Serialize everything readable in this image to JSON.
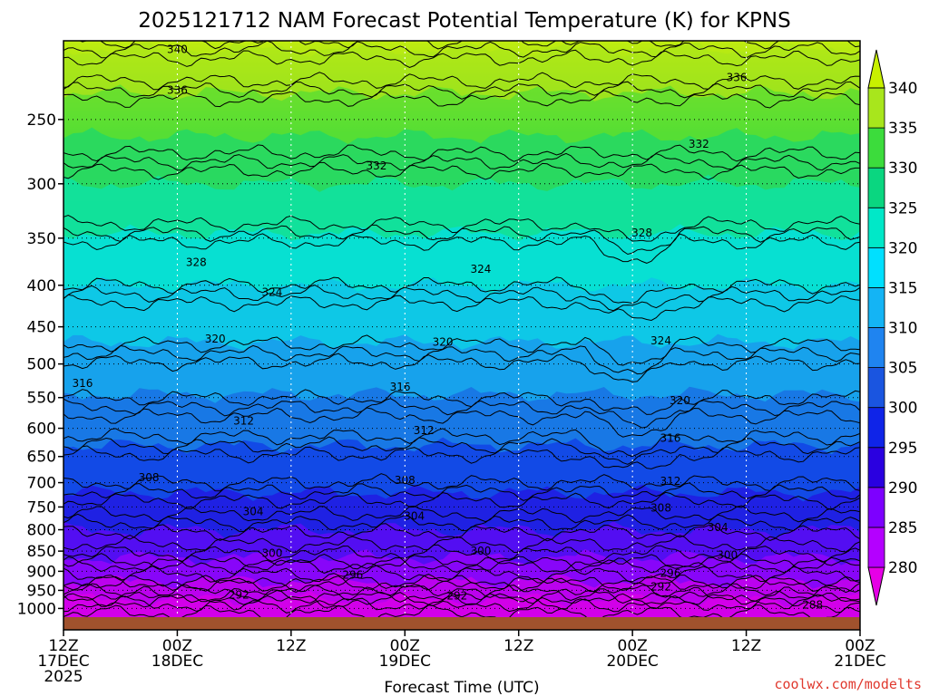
{
  "chart_data": {
    "type": "contour",
    "title": "2025121712 NAM Forecast Potential Temperature (K) for KPNS",
    "xlabel": "Forecast Time (UTC)",
    "ylabel": "",
    "x_ticks": [
      {
        "hour": 0,
        "line1": "12Z",
        "line2": "17DEC",
        "line3": "2025"
      },
      {
        "hour": 12,
        "line1": "00Z",
        "line2": "18DEC",
        "line3": ""
      },
      {
        "hour": 24,
        "line1": "12Z",
        "line2": "",
        "line3": ""
      },
      {
        "hour": 36,
        "line1": "00Z",
        "line2": "19DEC",
        "line3": ""
      },
      {
        "hour": 48,
        "line1": "12Z",
        "line2": "",
        "line3": ""
      },
      {
        "hour": 60,
        "line1": "00Z",
        "line2": "20DEC",
        "line3": ""
      },
      {
        "hour": 72,
        "line1": "12Z",
        "line2": "",
        "line3": ""
      },
      {
        "hour": 84,
        "line1": "00Z",
        "line2": "21DEC",
        "line3": ""
      }
    ],
    "xlim": [
      0,
      84
    ],
    "y_ticks": [
      "250",
      "300",
      "350",
      "400",
      "450",
      "500",
      "550",
      "600",
      "650",
      "700",
      "750",
      "800",
      "850",
      "900",
      "950",
      "1000"
    ],
    "ylim_hpa": [
      200,
      1025
    ],
    "colorbar": {
      "labels": [
        "280",
        "285",
        "290",
        "295",
        "300",
        "305",
        "310",
        "315",
        "320",
        "325",
        "330",
        "335",
        "340"
      ],
      "colors": [
        "#e600e6",
        "#b400ff",
        "#7d00ff",
        "#2a00e0",
        "#0f24e8",
        "#1a55e0",
        "#1f84f0",
        "#14b4f5",
        "#00e0ff",
        "#00e8c8",
        "#0ad680",
        "#3cdc3c",
        "#a8e61c",
        "#c8f000"
      ],
      "ranges": [
        [
          275,
          280
        ],
        [
          280,
          285
        ],
        [
          285,
          290
        ],
        [
          290,
          295
        ],
        [
          295,
          300
        ],
        [
          300,
          305
        ],
        [
          305,
          310
        ],
        [
          310,
          315
        ],
        [
          315,
          320
        ],
        [
          320,
          325
        ],
        [
          325,
          330
        ],
        [
          330,
          335
        ],
        [
          335,
          340
        ],
        [
          340,
          345
        ]
      ]
    },
    "contours": [
      {
        "theta": 288,
        "pressure": 990,
        "label": "288",
        "label_hour": 79
      },
      {
        "theta": 292,
        "pressure": 962,
        "label": "292",
        "label_hour": 18.5
      },
      {
        "theta": 292,
        "pressure": 940,
        "label": "292",
        "label_hour": 63
      },
      {
        "theta": 292,
        "pressure": 965,
        "label": "292",
        "label_hour": 41.5
      },
      {
        "theta": 296,
        "pressure": 910,
        "label": "296",
        "label_hour": 30.5
      },
      {
        "theta": 296,
        "pressure": 905,
        "label": "296",
        "label_hour": 64
      },
      {
        "theta": 300,
        "pressure": 855,
        "label": "300",
        "label_hour": 22
      },
      {
        "theta": 300,
        "pressure": 850,
        "label": "300",
        "label_hour": 44
      },
      {
        "theta": 300,
        "pressure": 860,
        "label": "300",
        "label_hour": 70
      },
      {
        "theta": 304,
        "pressure": 760,
        "label": "304",
        "label_hour": 20
      },
      {
        "theta": 304,
        "pressure": 770,
        "label": "304",
        "label_hour": 37
      },
      {
        "theta": 304,
        "pressure": 795,
        "label": "304",
        "label_hour": 69
      },
      {
        "theta": 308,
        "pressure": 690,
        "label": "308",
        "label_hour": 9
      },
      {
        "theta": 308,
        "pressure": 695,
        "label": "308",
        "label_hour": 36
      },
      {
        "theta": 308,
        "pressure": 752,
        "label": "308",
        "label_hour": 63
      },
      {
        "theta": 312,
        "pressure": 588,
        "label": "312",
        "label_hour": 19
      },
      {
        "theta": 312,
        "pressure": 604,
        "label": "312",
        "label_hour": 38
      },
      {
        "theta": 312,
        "pressure": 697,
        "label": "312",
        "label_hour": 64
      },
      {
        "theta": 316,
        "pressure": 528,
        "label": "316",
        "label_hour": 2
      },
      {
        "theta": 316,
        "pressure": 534,
        "label": "316",
        "label_hour": 35.5
      },
      {
        "theta": 316,
        "pressure": 617,
        "label": "316",
        "label_hour": 64
      },
      {
        "theta": 320,
        "pressure": 466,
        "label": "320",
        "label_hour": 16
      },
      {
        "theta": 320,
        "pressure": 470,
        "label": "320",
        "label_hour": 40
      },
      {
        "theta": 320,
        "pressure": 555,
        "label": "320",
        "label_hour": 65
      },
      {
        "theta": 324,
        "pressure": 408,
        "label": "324",
        "label_hour": 22
      },
      {
        "theta": 324,
        "pressure": 382,
        "label": "324",
        "label_hour": 44
      },
      {
        "theta": 324,
        "pressure": 468,
        "label": "324",
        "label_hour": 63
      },
      {
        "theta": 328,
        "pressure": 375,
        "label": "328",
        "label_hour": 14
      },
      {
        "theta": 328,
        "pressure": 345,
        "label": "328",
        "label_hour": 61
      },
      {
        "theta": 332,
        "pressure": 285,
        "label": "332",
        "label_hour": 33
      },
      {
        "theta": 332,
        "pressure": 268,
        "label": "332",
        "label_hour": 67
      },
      {
        "theta": 336,
        "pressure": 230,
        "label": "336",
        "label_hour": 12
      },
      {
        "theta": 336,
        "pressure": 222,
        "label": "336",
        "label_hour": 71
      },
      {
        "theta": 340,
        "pressure": 205,
        "label": "340",
        "label_hour": 12
      }
    ]
  },
  "credit": "coolwx.com/modelts"
}
